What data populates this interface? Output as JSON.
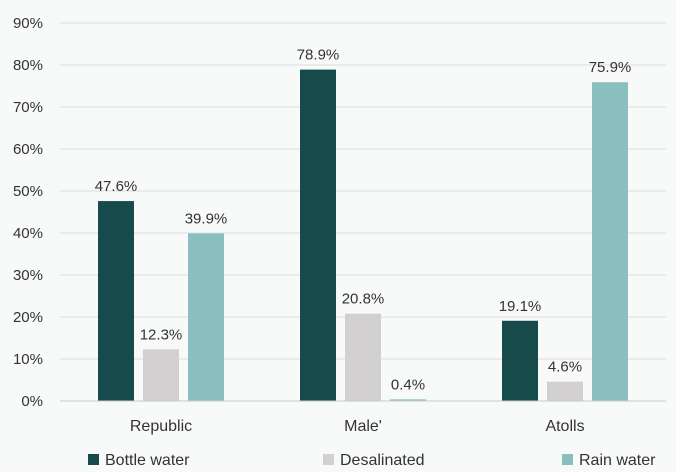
{
  "chart_data": {
    "type": "bar",
    "categories": [
      "Republic",
      "Male'",
      "Atolls"
    ],
    "series": [
      {
        "name": "Bottle water",
        "values": [
          47.6,
          78.9,
          19.1
        ],
        "labels": [
          "47.6%",
          "78.9%",
          "19.1%"
        ],
        "color": "#174a4a"
      },
      {
        "name": "Desalinated",
        "values": [
          12.3,
          20.8,
          4.6
        ],
        "labels": [
          "12.3%",
          "20.8%",
          "4.6%"
        ],
        "color": "#d2d0d1"
      },
      {
        "name": "Rain water",
        "values": [
          39.9,
          0.4,
          75.9
        ],
        "labels": [
          "39.9%",
          "0.4%",
          "75.9%"
        ],
        "color": "#8abfbf"
      }
    ],
    "ylim": [
      0,
      90
    ],
    "yticks": [
      0,
      10,
      20,
      30,
      40,
      50,
      60,
      70,
      80,
      90
    ],
    "ytick_labels": [
      "0%",
      "10%",
      "20%",
      "30%",
      "40%",
      "50%",
      "60%",
      "70%",
      "80%",
      "90%"
    ],
    "grid": true,
    "legend_position": "bottom",
    "title": "",
    "xlabel": "",
    "ylabel": ""
  }
}
